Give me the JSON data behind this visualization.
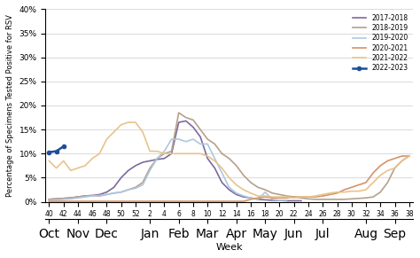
{
  "title": "",
  "xlabel": "Week",
  "ylabel": "Percentage of Specimens Tested Positive for RSV",
  "ylim": [
    0,
    0.4
  ],
  "yticks": [
    0,
    0.05,
    0.1,
    0.15,
    0.2,
    0.25,
    0.3,
    0.35,
    0.4
  ],
  "ytick_labels": [
    "0%",
    "5%",
    "10%",
    "15%",
    "20%",
    "25%",
    "30%",
    "35%",
    "40%"
  ],
  "week_labels": [
    "40",
    "42",
    "44",
    "46",
    "48",
    "50",
    "52",
    "2",
    "4",
    "6",
    "8",
    "10",
    "12",
    "14",
    "16",
    "18",
    "20",
    "22",
    "24",
    "26",
    "28",
    "30",
    "32",
    "34",
    "36",
    "38"
  ],
  "month_labels": [
    "Oct",
    "Nov",
    "Dec",
    "Jan",
    "Feb",
    "Mar",
    "Apr",
    "May",
    "Jun",
    "Jul",
    "Aug",
    "Sep"
  ],
  "month_positions": [
    0,
    2,
    4,
    7,
    9,
    11,
    13,
    15,
    17,
    19,
    22,
    24
  ],
  "series": {
    "2017-2018": {
      "color": "#7b6a9e",
      "linewidth": 1.2,
      "marker": null,
      "weeks": [
        40,
        41,
        42,
        43,
        44,
        45,
        46,
        47,
        48,
        49,
        50,
        51,
        52,
        1,
        2,
        3,
        4,
        5,
        6,
        7,
        8,
        9,
        10,
        11,
        12,
        13,
        14,
        15,
        16,
        17,
        18,
        19,
        20,
        21,
        22,
        23
      ],
      "values": [
        0.005,
        0.006,
        0.007,
        0.008,
        0.01,
        0.012,
        0.013,
        0.015,
        0.02,
        0.03,
        0.05,
        0.065,
        0.075,
        0.082,
        0.085,
        0.088,
        0.09,
        0.1,
        0.165,
        0.168,
        0.155,
        0.135,
        0.09,
        0.07,
        0.04,
        0.025,
        0.015,
        0.01,
        0.008,
        0.005,
        0.004,
        0.003,
        0.003,
        0.002,
        0.002,
        0.002
      ]
    },
    "2018-2019": {
      "color": "#b5a08a",
      "linewidth": 1.2,
      "marker": null,
      "weeks": [
        40,
        41,
        42,
        43,
        44,
        45,
        46,
        47,
        48,
        49,
        50,
        51,
        52,
        1,
        2,
        3,
        4,
        5,
        6,
        7,
        8,
        9,
        10,
        11,
        12,
        13,
        14,
        15,
        16,
        17,
        18,
        19,
        20,
        21,
        22,
        23,
        24,
        25,
        26,
        27,
        28,
        29,
        30,
        31,
        32,
        33,
        34,
        35,
        36,
        37,
        38
      ],
      "values": [
        0.005,
        0.006,
        0.007,
        0.008,
        0.01,
        0.012,
        0.013,
        0.012,
        0.015,
        0.018,
        0.02,
        0.025,
        0.03,
        0.04,
        0.07,
        0.09,
        0.1,
        0.105,
        0.185,
        0.175,
        0.17,
        0.15,
        0.13,
        0.12,
        0.1,
        0.09,
        0.075,
        0.055,
        0.04,
        0.03,
        0.025,
        0.018,
        0.015,
        0.012,
        0.01,
        0.008,
        0.006,
        0.005,
        0.005,
        0.005,
        0.005,
        0.005,
        0.006,
        0.007,
        0.008,
        0.01,
        0.02,
        0.04,
        0.07,
        0.085,
        0.095
      ]
    },
    "2019-2020": {
      "color": "#aec8e0",
      "linewidth": 1.2,
      "marker": null,
      "weeks": [
        40,
        41,
        42,
        43,
        44,
        45,
        46,
        47,
        48,
        49,
        50,
        51,
        52,
        1,
        2,
        3,
        4,
        5,
        6,
        7,
        8,
        9,
        10,
        11,
        12,
        13,
        14,
        15,
        16,
        17,
        18,
        19,
        20,
        21
      ],
      "values": [
        0.003,
        0.004,
        0.005,
        0.006,
        0.008,
        0.01,
        0.012,
        0.013,
        0.015,
        0.018,
        0.02,
        0.025,
        0.028,
        0.035,
        0.065,
        0.09,
        0.105,
        0.13,
        0.13,
        0.125,
        0.13,
        0.12,
        0.12,
        0.09,
        0.06,
        0.03,
        0.018,
        0.012,
        0.008,
        0.005,
        0.02,
        0.005,
        0.003,
        0.003
      ]
    },
    "2020-2021": {
      "color": "#d4936a",
      "linewidth": 1.2,
      "marker": null,
      "weeks": [
        40,
        41,
        42,
        43,
        44,
        45,
        46,
        47,
        48,
        49,
        50,
        51,
        52,
        1,
        2,
        3,
        4,
        5,
        6,
        7,
        8,
        9,
        10,
        11,
        12,
        13,
        14,
        15,
        16,
        17,
        18,
        19,
        20,
        21,
        22,
        23,
        24,
        25,
        26,
        27,
        28,
        29,
        30,
        31,
        32,
        33,
        34,
        35,
        36,
        37,
        38
      ],
      "values": [
        0.001,
        0.001,
        0.001,
        0.001,
        0.001,
        0.001,
        0.001,
        0.001,
        0.001,
        0.001,
        0.001,
        0.001,
        0.001,
        0.001,
        0.001,
        0.001,
        0.001,
        0.001,
        0.001,
        0.001,
        0.001,
        0.001,
        0.001,
        0.001,
        0.001,
        0.001,
        0.001,
        0.001,
        0.005,
        0.008,
        0.01,
        0.008,
        0.008,
        0.008,
        0.01,
        0.01,
        0.01,
        0.01,
        0.012,
        0.015,
        0.018,
        0.025,
        0.03,
        0.035,
        0.04,
        0.06,
        0.075,
        0.085,
        0.09,
        0.095,
        0.095
      ]
    },
    "2021-2022": {
      "color": "#e8c48a",
      "linewidth": 1.2,
      "marker": null,
      "weeks": [
        40,
        41,
        42,
        43,
        44,
        45,
        46,
        47,
        48,
        49,
        50,
        51,
        52,
        1,
        2,
        3,
        4,
        5,
        6,
        7,
        8,
        9,
        10,
        11,
        12,
        13,
        14,
        15,
        16,
        17,
        18,
        19,
        20,
        21,
        22,
        23,
        24,
        25,
        26,
        27,
        28,
        29,
        30,
        31,
        32,
        33,
        34,
        35,
        36,
        37,
        38
      ],
      "values": [
        0.085,
        0.07,
        0.085,
        0.065,
        0.07,
        0.075,
        0.09,
        0.1,
        0.13,
        0.145,
        0.16,
        0.165,
        0.165,
        0.145,
        0.105,
        0.105,
        0.1,
        0.1,
        0.1,
        0.1,
        0.1,
        0.1,
        0.095,
        0.085,
        0.07,
        0.05,
        0.035,
        0.025,
        0.018,
        0.012,
        0.012,
        0.01,
        0.01,
        0.01,
        0.008,
        0.01,
        0.01,
        0.012,
        0.015,
        0.018,
        0.02,
        0.02,
        0.022,
        0.022,
        0.025,
        0.04,
        0.055,
        0.065,
        0.07,
        0.085,
        0.095
      ]
    },
    "2022-2023": {
      "color": "#1f4e9a",
      "linewidth": 1.8,
      "marker": "o",
      "markersize": 3,
      "weeks": [
        40,
        41,
        42
      ],
      "values": [
        0.103,
        0.105,
        0.115
      ]
    }
  }
}
